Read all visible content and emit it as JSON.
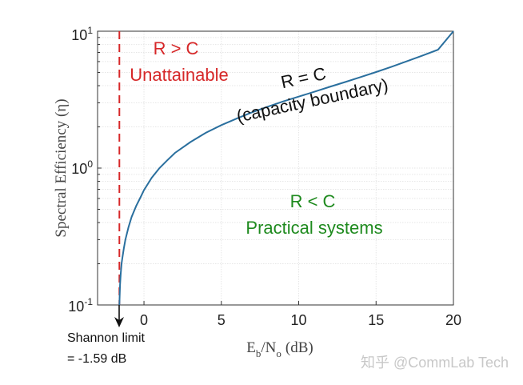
{
  "chart_data": {
    "type": "line",
    "title": "",
    "xlabel": "E_b/N_o (dB)",
    "ylabel": "Spectral Efficiency (η)",
    "xlim": [
      -3,
      20
    ],
    "ylim": [
      0.1,
      10
    ],
    "yscale": "log",
    "grid": true,
    "x_ticks": [
      "0",
      "5",
      "10",
      "15",
      "20"
    ],
    "y_ticks": [
      {
        "base": "10",
        "exp": "1"
      },
      {
        "base": "10",
        "exp": "0"
      },
      {
        "base": "10",
        "exp": "-1"
      }
    ],
    "xlabel_parts": {
      "E": "E",
      "b": "b",
      "slash": "/N",
      "o": "o",
      "unit": "(dB)"
    },
    "ylabel_parts": {
      "text": "Spectral Efficiency (",
      "eta": "η",
      "close": ")"
    },
    "series": [
      {
        "color": "#2a6f9e",
        "x": [
          -1.59,
          -1.58,
          -1.55,
          -1.5,
          -1.45,
          -1.4,
          -1.3,
          -1.2,
          -1.0,
          -0.8,
          -0.5,
          -0.2,
          0.0,
          0.5,
          1.0,
          1.5,
          2.0,
          3.0,
          4.0,
          5.0,
          6.0,
          7.0,
          8.0,
          9.0,
          10.0,
          11.0,
          12.0,
          13.0,
          14.0,
          15.0,
          16.0,
          17.0,
          18.0,
          19.0,
          20.0
        ],
        "y": [
          0.1,
          0.11,
          0.14,
          0.17,
          0.2,
          0.22,
          0.26,
          0.3,
          0.37,
          0.44,
          0.53,
          0.62,
          0.69,
          0.85,
          1.0,
          1.14,
          1.29,
          1.55,
          1.81,
          2.06,
          2.3,
          2.56,
          2.81,
          3.07,
          3.33,
          3.61,
          3.92,
          4.25,
          4.62,
          5.03,
          5.5,
          6.04,
          6.64,
          7.33,
          10.0
        ]
      }
    ],
    "shannon_limit": {
      "x": -1.59,
      "color": "#d62728"
    },
    "annotations": {
      "unattainable_1": "R > C",
      "unattainable_2": "Unattainable",
      "boundary_1": "R = C",
      "boundary_2": "(capacity boundary)",
      "practical_1": "R < C",
      "practical_2": "Practical systems",
      "shannon_1": "Shannon limit",
      "shannon_2": "= -1.59 dB"
    },
    "colors": {
      "unattainable": "#d62728",
      "boundary": "#111111",
      "practical": "#1e8a1e",
      "axis": "#333333"
    }
  },
  "watermark": "知乎 @CommLab Tech"
}
